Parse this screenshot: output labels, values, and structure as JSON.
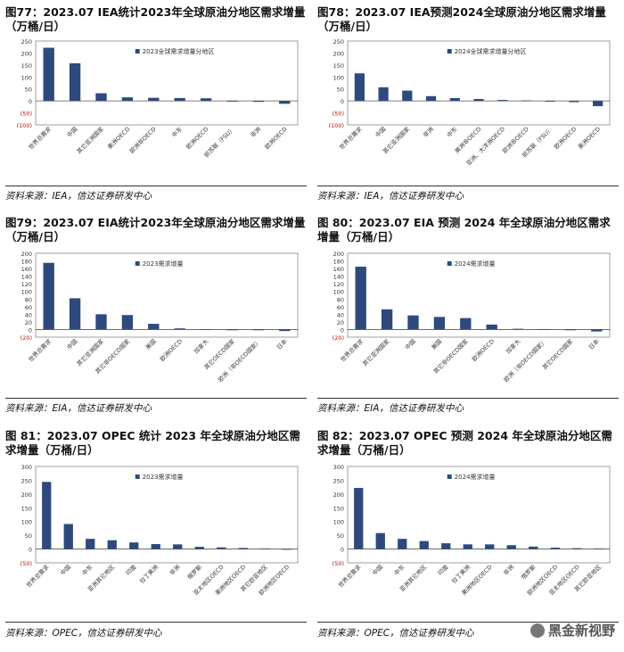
{
  "panels": [
    {
      "title": "图77：2023.07 IEA统计2023年全球原油分地区需求增量（万桶/日）",
      "source": "资料来源：IEA，信达证券研发中心",
      "chart_data": {
        "type": "bar",
        "legend": "2023全球需求增量分地区",
        "categories": [
          "世界总需求",
          "中国",
          "其它亚洲国家",
          "美洲OECD",
          "欧洲非OECD",
          "中东",
          "欧洲OECD",
          "前苏联（FSU）",
          "非洲",
          "欧洲OECD"
        ],
        "values": [
          222,
          157,
          32,
          15,
          13,
          12,
          11,
          -2,
          -4,
          -12
        ],
        "ylim": [
          -100,
          250
        ],
        "yticks": [
          250,
          200,
          150,
          100,
          50,
          0,
          -50,
          -100
        ]
      }
    },
    {
      "title": "图78：2023.07 IEA预测2024全球原油分地区需求增量（万桶/日）",
      "source": "资料来源：IEA，信达证券研发中心",
      "chart_data": {
        "type": "bar",
        "legend": "2024全球需求增量分地区",
        "categories": [
          "世界总需求",
          "中国",
          "其它亚洲国家",
          "非洲",
          "中东",
          "美洲非OECD",
          "亚洲、大洋洲OECD",
          "欧洲非OECD",
          "前苏联（FSU）",
          "欧洲OECD",
          "美洲OECD"
        ],
        "values": [
          115,
          57,
          43,
          20,
          12,
          8,
          4,
          2,
          0,
          -5,
          -22
        ],
        "ylim": [
          -100,
          250
        ],
        "yticks": [
          250,
          200,
          150,
          100,
          50,
          0,
          -50,
          -100
        ]
      }
    },
    {
      "title": "图79：2023.07 EIA统计2023年全球原油分地区需求增量（万桶/日）",
      "source": "资料来源：EIA，信达证券研发中心",
      "chart_data": {
        "type": "bar",
        "legend": "2023需求增量",
        "categories": [
          "世界总需求",
          "中国",
          "其它亚洲国家",
          "其它非OECD国家",
          "美国",
          "欧洲OECD",
          "加拿大",
          "其它OECD国家",
          "欧洲（非OECD国家）",
          "日本"
        ],
        "values": [
          175,
          82,
          40,
          38,
          15,
          3,
          1,
          0,
          -1,
          -4
        ],
        "ylim": [
          -20,
          200
        ],
        "yticks": [
          200,
          180,
          160,
          140,
          120,
          100,
          80,
          60,
          40,
          20,
          0,
          -20
        ]
      }
    },
    {
      "title": "图 80：2023.07 EIA 预测 2024 年全球原油分地区需求增量（万桶/日）",
      "source": "资料来源：EIA，信达证券研发中心",
      "chart_data": {
        "type": "bar",
        "legend": "2024需求增量",
        "categories": [
          "世界总需求",
          "其它亚洲国家",
          "中国",
          "美国",
          "其它非OECD国家",
          "欧洲OECD",
          "加拿大",
          "欧洲（非OECD国家）",
          "其它OECD国家",
          "日本"
        ],
        "values": [
          165,
          53,
          37,
          33,
          30,
          13,
          2,
          1,
          0,
          -5
        ],
        "ylim": [
          -20,
          200
        ],
        "yticks": [
          200,
          180,
          160,
          140,
          120,
          100,
          80,
          60,
          40,
          20,
          0,
          -20
        ]
      }
    },
    {
      "title": "图 81：2023.07 OPEC 统计 2023 年全球原油分地区需求增量（万桶/日）",
      "source": "资料来源：OPEC，信达证券研发中心",
      "chart_data": {
        "type": "bar",
        "legend": "2023需求增量",
        "categories": [
          "世界总需求",
          "中国",
          "中东",
          "亚洲其它地区",
          "印度",
          "拉丁美洲",
          "非洲",
          "俄罗斯",
          "亚太地区OECD",
          "美洲地区OECD",
          "其它欧亚地区",
          "欧洲地区OECD"
        ],
        "values": [
          244,
          91,
          37,
          32,
          24,
          18,
          17,
          8,
          6,
          4,
          2,
          -2
        ],
        "ylim": [
          -50,
          300
        ],
        "yticks": [
          300,
          250,
          200,
          150,
          100,
          50,
          0,
          -50
        ]
      }
    },
    {
      "title": "图 82：2023.07 OPEC 预测 2024 年全球原油分地区需求增量（万桶/日）",
      "source": "资料来源：OPEC，信达证券研发中心",
      "chart_data": {
        "type": "bar",
        "legend": "2024需求增量",
        "categories": [
          "世界总需求",
          "中国",
          "中东",
          "亚洲其它地区",
          "印度",
          "拉丁美洲",
          "美洲地区OECD",
          "非洲",
          "俄罗斯",
          "欧洲地区OECD",
          "亚太地区OECD",
          "其它欧亚地区"
        ],
        "values": [
          222,
          58,
          37,
          29,
          21,
          17,
          17,
          14,
          9,
          5,
          3,
          2
        ],
        "ylim": [
          -50,
          300
        ],
        "yticks": [
          300,
          250,
          200,
          150,
          100,
          50,
          0,
          -50
        ]
      }
    }
  ],
  "watermark": "黑金新视野",
  "colors": {
    "bar": "#2e4a7d",
    "axis": "#555555",
    "neg_tick": "#cc0000"
  }
}
